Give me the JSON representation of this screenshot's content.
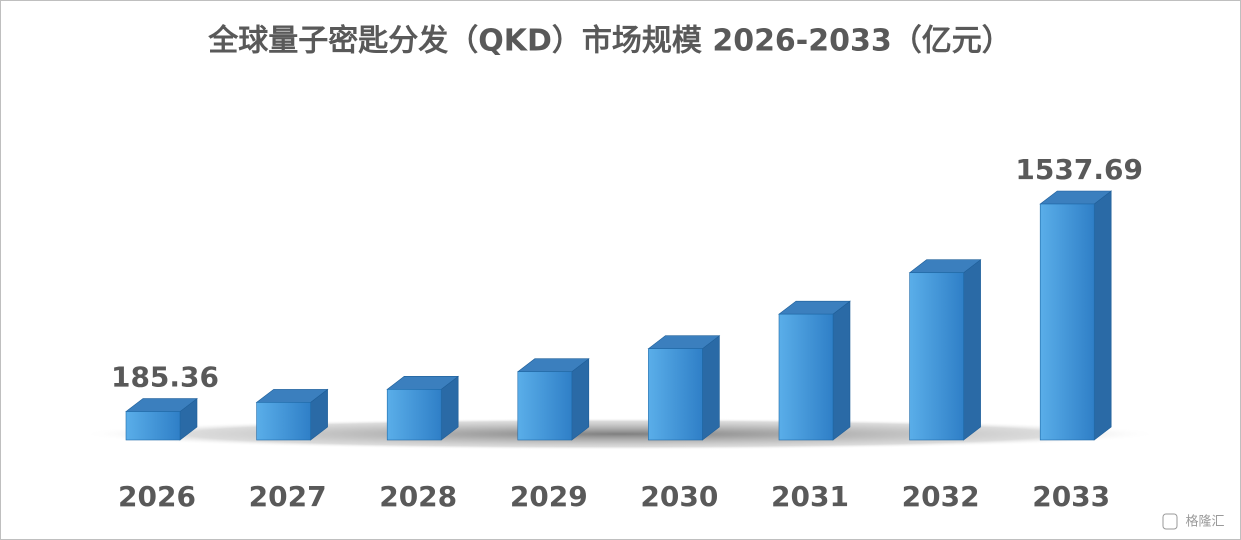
{
  "chart_data": {
    "type": "bar3d",
    "title": "全球量子密匙分发（QKD）市场规模 2026-2033（亿元）",
    "categories": [
      "2026",
      "2027",
      "2028",
      "2029",
      "2030",
      "2031",
      "2032",
      "2033"
    ],
    "values": [
      185.36,
      245,
      330,
      445,
      595,
      820,
      1090,
      1537.69
    ],
    "value_labels": [
      "185.36",
      null,
      null,
      null,
      null,
      null,
      null,
      "1537.69"
    ],
    "color": "#3d8fd6",
    "watermark": "格隆汇"
  }
}
